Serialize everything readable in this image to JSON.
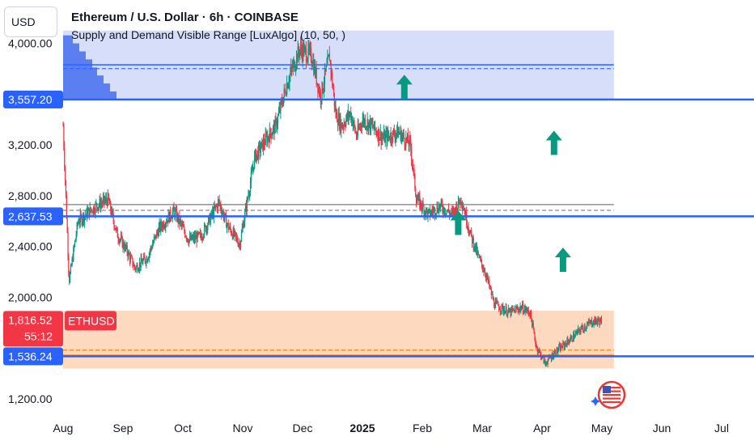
{
  "header": {
    "title": "Ethereum / U.S. Dollar · 6h · COINBASE",
    "indicator": "Supply and Demand Visible Range [LuxAlgo] (10, 50, )"
  },
  "currency_button": "USD",
  "colors": {
    "supply_zone": "#d6defa",
    "demand_zone": "#fdd9c0",
    "level_line": "#2962ff",
    "up_candle": "#089981",
    "down_candle": "#f23645",
    "arrow": "#089981",
    "price_tag": "#f23645"
  },
  "price_tag": {
    "symbol": "ETHUSD",
    "price": "1,816.52",
    "countdown": "55:12"
  },
  "level_tags": [
    "3,557.20",
    "2,637.53",
    "1,536.24"
  ],
  "chart_data": {
    "type": "candlestick",
    "title": "Ethereum / U.S. Dollar · 6h · COINBASE",
    "ylim": [
      1080,
      4340
    ],
    "y_ticks": [
      {
        "label": "4,000.00",
        "value": 4000
      },
      {
        "label": "3,200.00",
        "value": 3200
      },
      {
        "label": "2,800.00",
        "value": 2800
      },
      {
        "label": "2,400.00",
        "value": 2400
      },
      {
        "label": "2,000.00",
        "value": 2000
      },
      {
        "label": "1,200.00",
        "value": 1200
      }
    ],
    "x_ticks": [
      {
        "label": "Aug",
        "pos": 0.0,
        "bold": false
      },
      {
        "label": "Sep",
        "pos": 1.0,
        "bold": false
      },
      {
        "label": "Oct",
        "pos": 2.0,
        "bold": false
      },
      {
        "label": "Nov",
        "pos": 3.0,
        "bold": false
      },
      {
        "label": "Dec",
        "pos": 4.0,
        "bold": false
      },
      {
        "label": "2025",
        "pos": 5.0,
        "bold": true
      },
      {
        "label": "Feb",
        "pos": 6.0,
        "bold": false
      },
      {
        "label": "Mar",
        "pos": 7.0,
        "bold": false
      },
      {
        "label": "Apr",
        "pos": 8.0,
        "bold": false
      },
      {
        "label": "May",
        "pos": 9.0,
        "bold": false
      },
      {
        "label": "Jun",
        "pos": 10.0,
        "bold": false
      },
      {
        "label": "Jul",
        "pos": 11.0,
        "bold": false
      }
    ],
    "zones": [
      {
        "name": "supply",
        "top": 4100,
        "bottom": 3557,
        "avg": 3830,
        "avg2": 3800
      },
      {
        "name": "equilibrium",
        "top": 2730,
        "bottom": 2637,
        "avg": 2685
      },
      {
        "name": "demand",
        "top": 1895,
        "bottom": 1440,
        "avg": 1585,
        "avg2": 1545
      }
    ],
    "levels": [
      3557.2,
      2637.53,
      1536.24
    ],
    "arrows": [
      {
        "t": 5.7,
        "price": 3650
      },
      {
        "t": 8.2,
        "price": 3210
      },
      {
        "t": 6.6,
        "price": 2580
      },
      {
        "t": 8.35,
        "price": 2290
      }
    ],
    "last_price": 1816.52,
    "anchors": [
      [
        0.0,
        3350
      ],
      [
        0.1,
        2130
      ],
      [
        0.25,
        2600
      ],
      [
        0.55,
        2720
      ],
      [
        0.75,
        2770
      ],
      [
        0.9,
        2500
      ],
      [
        1.05,
        2380
      ],
      [
        1.2,
        2230
      ],
      [
        1.4,
        2310
      ],
      [
        1.6,
        2540
      ],
      [
        1.85,
        2680
      ],
      [
        2.1,
        2450
      ],
      [
        2.3,
        2480
      ],
      [
        2.6,
        2750
      ],
      [
        2.75,
        2560
      ],
      [
        2.95,
        2420
      ],
      [
        3.2,
        3100
      ],
      [
        3.4,
        3250
      ],
      [
        3.55,
        3350
      ],
      [
        3.75,
        3700
      ],
      [
        3.95,
        3950
      ],
      [
        4.15,
        3900
      ],
      [
        4.3,
        3580
      ],
      [
        4.45,
        3900
      ],
      [
        4.55,
        3450
      ],
      [
        4.65,
        3350
      ],
      [
        4.8,
        3450
      ],
      [
        4.9,
        3270
      ],
      [
        5.0,
        3400
      ],
      [
        5.15,
        3350
      ],
      [
        5.35,
        3250
      ],
      [
        5.6,
        3300
      ],
      [
        5.8,
        3200
      ],
      [
        5.9,
        2780
      ],
      [
        6.1,
        2650
      ],
      [
        6.3,
        2720
      ],
      [
        6.5,
        2650
      ],
      [
        6.65,
        2780
      ],
      [
        6.8,
        2500
      ],
      [
        6.95,
        2300
      ],
      [
        7.05,
        2200
      ],
      [
        7.2,
        1950
      ],
      [
        7.45,
        1880
      ],
      [
        7.65,
        1920
      ],
      [
        7.8,
        1880
      ],
      [
        7.9,
        1620
      ],
      [
        8.05,
        1480
      ],
      [
        8.2,
        1560
      ],
      [
        8.35,
        1620
      ],
      [
        8.5,
        1680
      ],
      [
        8.65,
        1750
      ],
      [
        8.85,
        1810
      ],
      [
        9.0,
        1816
      ]
    ]
  }
}
